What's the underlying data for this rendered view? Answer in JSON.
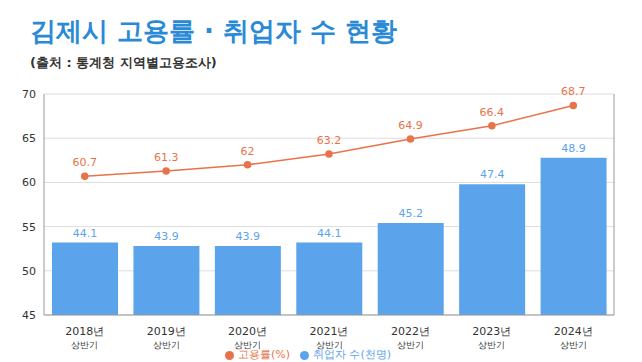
{
  "chart_data": {
    "type": "bar",
    "title": "김제시 고용률 · 취업자 수 현황",
    "subtitle": "(출처 : 통계청 지역별고용조사)",
    "categories": [
      "2018년 상반기",
      "2019년 상반기",
      "2020년 상반기",
      "2021년 상반기",
      "2022년 상반기",
      "2023년 상반기",
      "2024년 상반기"
    ],
    "series": [
      {
        "name": "취업자 수(천명)",
        "type": "bar",
        "color": "#5ba4ec",
        "axis": "y2",
        "values": [
          44.1,
          43.9,
          43.9,
          44.1,
          45.2,
          47.4,
          48.9
        ]
      },
      {
        "name": "고용률(%)",
        "type": "line",
        "color": "#e8734a",
        "marker": "circle",
        "values": [
          60.7,
          61.3,
          62,
          63.2,
          64.9,
          66.4,
          68.7
        ]
      }
    ],
    "ylim": [
      45,
      70
    ],
    "yticks": [
      45,
      50,
      55,
      60,
      65,
      70
    ],
    "y2lim": [
      40,
      52.5
    ],
    "y2ticks": [],
    "grid": true,
    "legend": "bottom",
    "data_labels": true
  }
}
